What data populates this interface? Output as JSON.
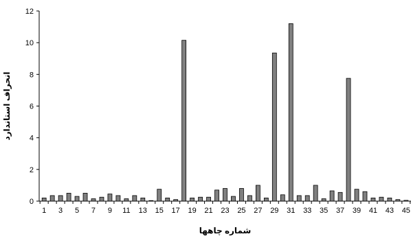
{
  "chart_data": {
    "type": "bar",
    "title": "",
    "xlabel": "شماره چاهها",
    "ylabel": "انحراف استاندارد",
    "ylim": [
      0,
      12
    ],
    "yticks": [
      0,
      2,
      4,
      6,
      8,
      10,
      12
    ],
    "x": [
      1,
      2,
      3,
      4,
      5,
      6,
      7,
      8,
      9,
      10,
      11,
      12,
      13,
      14,
      15,
      16,
      17,
      18,
      19,
      20,
      21,
      22,
      23,
      24,
      25,
      26,
      27,
      28,
      29,
      30,
      31,
      32,
      33,
      34,
      35,
      36,
      37,
      38,
      39,
      40,
      41,
      42,
      43,
      44,
      45
    ],
    "xtick_labels": [
      "1",
      "3",
      "5",
      "7",
      "9",
      "11",
      "13",
      "15",
      "17",
      "19",
      "21",
      "23",
      "25",
      "27",
      "29",
      "31",
      "33",
      "35",
      "37",
      "39",
      "41",
      "43",
      "45"
    ],
    "values": [
      0.2,
      0.35,
      0.35,
      0.5,
      0.3,
      0.5,
      0.15,
      0.25,
      0.45,
      0.35,
      0.15,
      0.35,
      0.2,
      0.02,
      0.75,
      0.2,
      0.1,
      10.15,
      0.2,
      0.25,
      0.25,
      0.7,
      0.8,
      0.3,
      0.8,
      0.35,
      1.0,
      0.2,
      9.35,
      0.4,
      11.2,
      0.35,
      0.35,
      1.0,
      0.15,
      0.65,
      0.55,
      7.75,
      0.75,
      0.6,
      0.2,
      0.25,
      0.2,
      0.1,
      0.05
    ],
    "grid": false,
    "legend": "none",
    "bar_color": "#808080",
    "bar_edge_color": "#000000"
  }
}
